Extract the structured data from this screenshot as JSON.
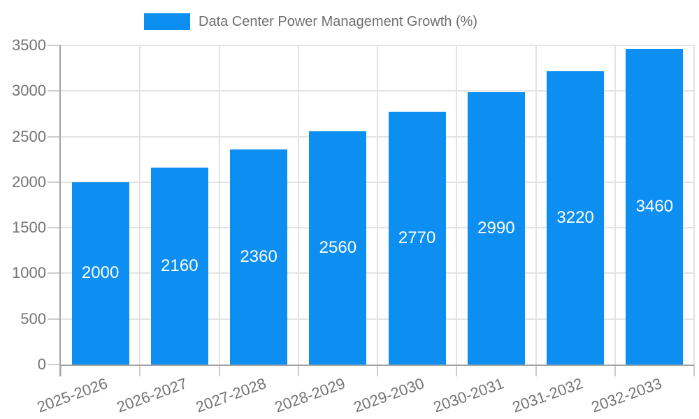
{
  "chart_data": {
    "type": "bar",
    "title": "",
    "legend_label": "Data Center Power Management Growth (%)",
    "legend_position": "top-center",
    "categories": [
      "2025-2026",
      "2026-2027",
      "2027-2028",
      "2028-2029",
      "2029-2030",
      "2030-2031",
      "2031-2032",
      "2032-2033"
    ],
    "values": [
      2000,
      2160,
      2360,
      2560,
      2770,
      2990,
      3220,
      3460
    ],
    "xlabel": "",
    "ylabel": "",
    "ylim": [
      0,
      3500
    ],
    "yticks": [
      0,
      500,
      1000,
      1500,
      2000,
      2500,
      3000,
      3500
    ],
    "grid": true,
    "x_tick_label_rotation_deg": -20,
    "colors": {
      "bar": "#0d8ff2",
      "bar_value_text": "#ffffff",
      "axis_text": "#757575",
      "legend_text": "#6f6f6f",
      "gridline": "#e3e3e3",
      "tick": "#cccccc",
      "axis_line": "#a3a3a3",
      "background": "#ffffff"
    }
  }
}
